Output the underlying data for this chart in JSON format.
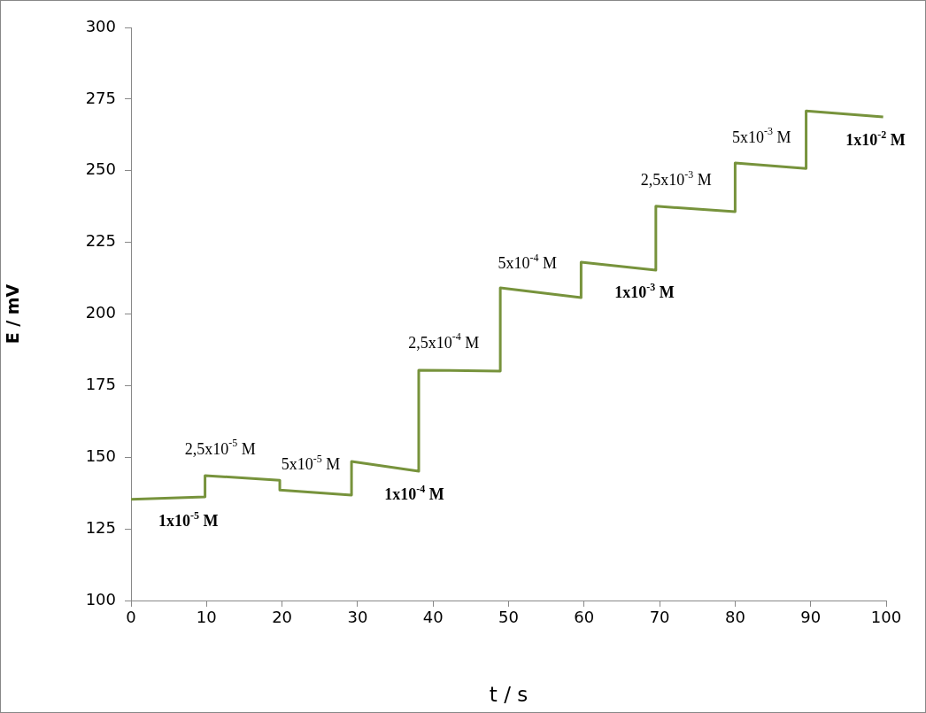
{
  "chart_data": {
    "type": "line",
    "xlabel": "t / s",
    "ylabel": "E / mV",
    "xlim": [
      0,
      100
    ],
    "xticks": [
      0,
      10,
      20,
      30,
      40,
      50,
      60,
      70,
      80,
      90,
      100
    ],
    "ylim": [
      100,
      300
    ],
    "yticks": [
      100,
      125,
      150,
      175,
      200,
      225,
      250,
      275,
      300
    ],
    "grid": false,
    "legend": false,
    "marker": "none",
    "line_style": "solid",
    "series": [
      {
        "color": "#77933c",
        "x": [
          0,
          9.8,
          9.8,
          19.7,
          19.7,
          29.2,
          29.2,
          38.1,
          38.1,
          48.9,
          48.9,
          59.6,
          59.6,
          69.5,
          69.5,
          80,
          80,
          89.4,
          89.4,
          99.6
        ],
        "values": [
          135.3,
          136.2,
          143.6,
          142.0,
          138.6,
          136.8,
          148.5,
          145.1,
          180.4,
          180.1,
          209.1,
          205.7,
          218.1,
          215.3,
          237.6,
          235.7,
          252.7,
          250.8,
          270.9,
          268.8
        ]
      }
    ],
    "annotations": [
      {
        "text": "1x10$^{-5}$ M",
        "x": 7.6,
        "y": 136.0
      },
      {
        "text": "2,5x10$^{-5}$ M",
        "x": 11.8,
        "y": 143.3
      },
      {
        "text": "5x10$^{-5}$ M",
        "x": 23.8,
        "y": 137.8
      },
      {
        "text": "1x10$^{-4}$ M",
        "x": 37.5,
        "y": 145.3
      },
      {
        "text": "2,5x10$^{-4}$ M",
        "x": 41.4,
        "y": 180.4
      },
      {
        "text": "5x10$^{-4}$ M",
        "x": 52.5,
        "y": 208.0
      },
      {
        "text": "1x10$^{-3}$ M",
        "x": 68.0,
        "y": 215.7
      },
      {
        "text": "2,5x10$^{-3}$ M",
        "x": 72.2,
        "y": 237.1
      },
      {
        "text": "5x10$^{-3}$ M",
        "x": 83.5,
        "y": 252.0
      },
      {
        "text": "1x10$^{-2}$ M",
        "x": 98.6,
        "y": 268.9
      }
    ]
  }
}
